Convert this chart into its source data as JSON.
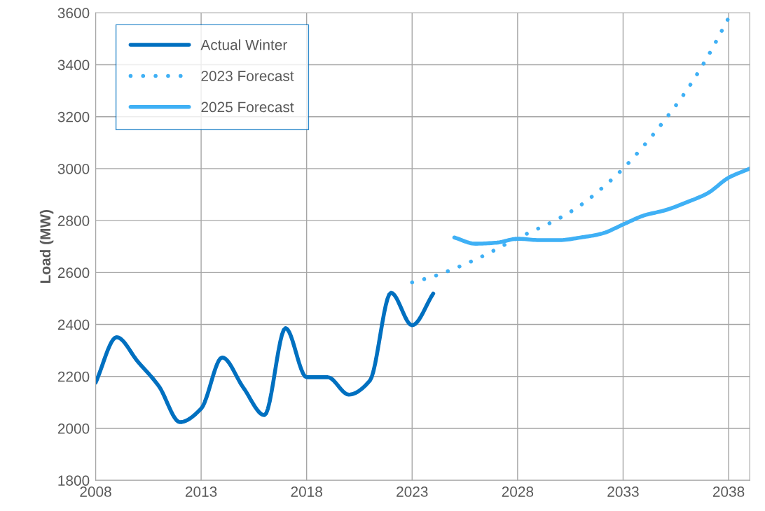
{
  "chart_data": {
    "type": "line",
    "ylabel": "Load (MW)",
    "xlim": [
      2008,
      2039
    ],
    "xticks": [
      2008,
      2013,
      2018,
      2023,
      2028,
      2033,
      2038
    ],
    "ylim": [
      1800,
      3600
    ],
    "yticks": [
      1800,
      2000,
      2200,
      2400,
      2600,
      2800,
      3000,
      3200,
      3400,
      3600
    ],
    "grid": true,
    "legend": "top left",
    "marker": "none",
    "series": [
      {
        "name": "Actual Winter",
        "color": "#0070c0",
        "line_style": "solid",
        "x": [
          2008,
          2009,
          2010,
          2011,
          2012,
          2013,
          2014,
          2015,
          2016,
          2017,
          2018,
          2019,
          2020,
          2021,
          2022,
          2023,
          2024
        ],
        "values": [
          2176,
          2351,
          2257,
          2162,
          2024,
          2076,
          2273,
          2157,
          2051,
          2386,
          2197,
          2197,
          2130,
          2184,
          2522,
          2397,
          2519
        ]
      },
      {
        "name": "2023 Forecast",
        "color": "#3fb0f5",
        "line_style": "dotted",
        "x": [
          2023,
          2024,
          2025,
          2026,
          2027,
          2028,
          2029,
          2030,
          2031,
          2032,
          2033,
          2034,
          2035,
          2036,
          2037,
          2038
        ],
        "values": [
          2562,
          2585,
          2615,
          2650,
          2690,
          2733,
          2770,
          2810,
          2860,
          2925,
          3000,
          3090,
          3190,
          3300,
          3430,
          3580
        ]
      },
      {
        "name": "2025 Forecast",
        "color": "#3fb0f5",
        "line_style": "solid",
        "x": [
          2025,
          2026,
          2027,
          2028,
          2029,
          2030,
          2031,
          2032,
          2033,
          2034,
          2035,
          2036,
          2037,
          2038,
          2039
        ],
        "values": [
          2735,
          2711,
          2715,
          2730,
          2725,
          2725,
          2735,
          2750,
          2785,
          2820,
          2840,
          2870,
          2905,
          2965,
          3000
        ]
      }
    ]
  }
}
